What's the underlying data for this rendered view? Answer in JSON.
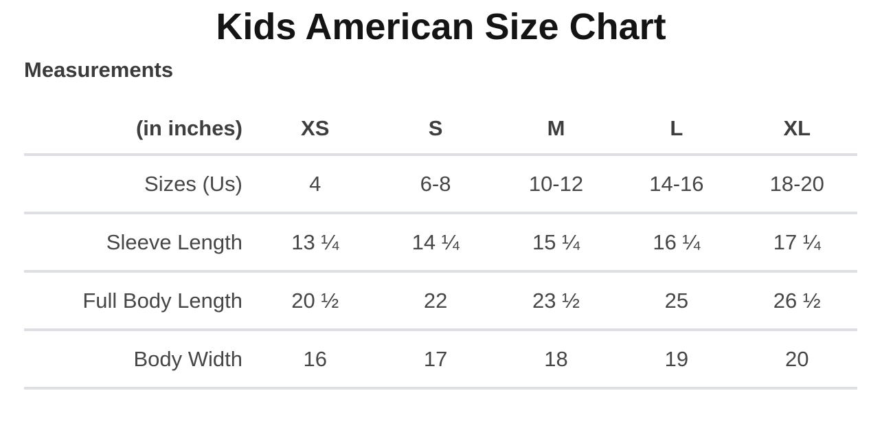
{
  "page": {
    "title": "Kids American Size Chart",
    "section_heading": "Measurements"
  },
  "colors": {
    "background": "#ffffff",
    "title_text": "#141414",
    "heading_text": "#3b3b3b",
    "table_text": "#464646",
    "divider": "#dedfe3"
  },
  "table": {
    "header": {
      "label": "(in inches)",
      "columns": [
        "XS",
        "S",
        "M",
        "L",
        "XL"
      ]
    },
    "rows": [
      {
        "label": "Sizes (Us)",
        "values": [
          "4",
          "6-8",
          "10-12",
          "14-16",
          "18-20"
        ]
      },
      {
        "label": "Sleeve Length",
        "values": [
          "13 ¼",
          "14 ¼",
          "15 ¼",
          "16 ¼",
          "17 ¼"
        ]
      },
      {
        "label": "Full Body Length",
        "values": [
          "20 ½",
          "22",
          "23 ½",
          "25",
          "26 ½"
        ]
      },
      {
        "label": "Body Width",
        "values": [
          "16",
          "17",
          "18",
          "19",
          "20"
        ]
      }
    ]
  },
  "chart_data": {
    "type": "table",
    "title": "Kids American Size Chart",
    "subtitle": "Measurements",
    "unit": "inches",
    "columns": [
      "(in inches)",
      "XS",
      "S",
      "M",
      "L",
      "XL"
    ],
    "rows": [
      [
        "Sizes (Us)",
        "4",
        "6-8",
        "10-12",
        "14-16",
        "18-20"
      ],
      [
        "Sleeve Length",
        "13 ¼",
        "14 ¼",
        "15 ¼",
        "16 ¼",
        "17 ¼"
      ],
      [
        "Full Body Length",
        "20 ½",
        "22",
        "23 ½",
        "25",
        "26 ½"
      ],
      [
        "Body Width",
        "16",
        "17",
        "18",
        "19",
        "20"
      ]
    ]
  }
}
